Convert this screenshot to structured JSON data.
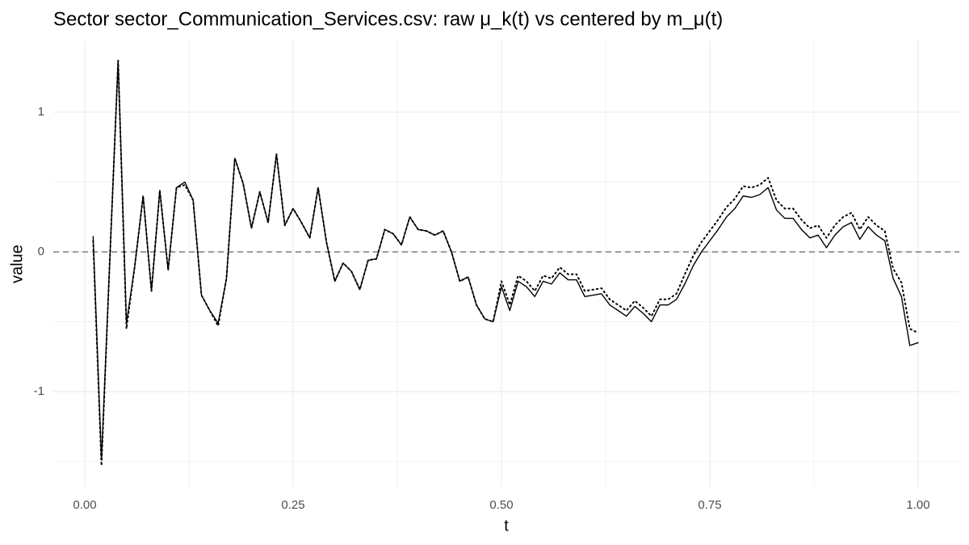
{
  "chart_data": {
    "type": "line",
    "title": "Sector sector_Communication_Services.csv: raw μ_k(t) vs centered by m_μ(t)",
    "xlabel": "t",
    "ylabel": "value",
    "x": [
      0.01,
      0.02,
      0.03,
      0.04,
      0.05,
      0.06,
      0.07,
      0.08,
      0.09,
      0.1,
      0.11,
      0.12,
      0.13,
      0.14,
      0.15,
      0.16,
      0.17,
      0.18,
      0.19,
      0.2,
      0.21,
      0.22,
      0.23,
      0.24,
      0.25,
      0.26,
      0.27,
      0.28,
      0.29,
      0.3,
      0.31,
      0.32,
      0.33,
      0.34,
      0.35,
      0.36,
      0.37,
      0.38,
      0.39,
      0.4,
      0.41,
      0.42,
      0.43,
      0.44,
      0.45,
      0.46,
      0.47,
      0.48,
      0.49,
      0.5,
      0.51,
      0.52,
      0.53,
      0.54,
      0.55,
      0.56,
      0.57,
      0.58,
      0.59,
      0.6,
      0.61,
      0.62,
      0.63,
      0.64,
      0.65,
      0.66,
      0.67,
      0.68,
      0.69,
      0.7,
      0.71,
      0.72,
      0.73,
      0.74,
      0.75,
      0.76,
      0.77,
      0.78,
      0.79,
      0.8,
      0.81,
      0.82,
      0.83,
      0.84,
      0.85,
      0.86,
      0.87,
      0.88,
      0.89,
      0.9,
      0.91,
      0.92,
      0.93,
      0.94,
      0.95,
      0.96,
      0.97,
      0.98,
      0.99,
      1.0
    ],
    "series": [
      {
        "color": "#000000",
        "line_style": "solid",
        "values": [
          0.11,
          -1.49,
          -0.06,
          1.37,
          -0.51,
          -0.1,
          0.4,
          -0.28,
          0.44,
          -0.13,
          0.46,
          0.5,
          0.37,
          -0.31,
          -0.42,
          -0.51,
          -0.19,
          0.67,
          0.49,
          0.17,
          0.43,
          0.21,
          0.7,
          0.19,
          0.31,
          0.21,
          0.1,
          0.46,
          0.07,
          -0.21,
          -0.08,
          -0.14,
          -0.27,
          -0.06,
          -0.05,
          0.16,
          0.13,
          0.05,
          0.25,
          0.16,
          0.15,
          0.12,
          0.15,
          0.0,
          -0.21,
          -0.18,
          -0.38,
          -0.48,
          -0.5,
          -0.25,
          -0.42,
          -0.21,
          -0.25,
          -0.32,
          -0.21,
          -0.23,
          -0.15,
          -0.2,
          -0.2,
          -0.32,
          -0.31,
          -0.3,
          -0.38,
          -0.42,
          -0.46,
          -0.39,
          -0.44,
          -0.5,
          -0.38,
          -0.38,
          -0.34,
          -0.23,
          -0.1,
          0.0,
          0.08,
          0.16,
          0.25,
          0.31,
          0.4,
          0.39,
          0.41,
          0.46,
          0.3,
          0.24,
          0.24,
          0.16,
          0.1,
          0.12,
          0.03,
          0.12,
          0.18,
          0.21,
          0.09,
          0.18,
          0.12,
          0.08,
          -0.19,
          -0.32,
          -0.67,
          -0.65
        ]
      },
      {
        "color": "#000000",
        "line_style": "dotted",
        "values": [
          0.08,
          -1.53,
          -0.06,
          1.37,
          -0.55,
          -0.1,
          0.4,
          -0.28,
          0.44,
          -0.13,
          0.46,
          0.48,
          0.37,
          -0.31,
          -0.42,
          -0.53,
          -0.19,
          0.67,
          0.49,
          0.17,
          0.43,
          0.21,
          0.7,
          0.19,
          0.31,
          0.21,
          0.1,
          0.46,
          0.07,
          -0.21,
          -0.08,
          -0.14,
          -0.27,
          -0.06,
          -0.05,
          0.16,
          0.13,
          0.05,
          0.25,
          0.16,
          0.15,
          0.12,
          0.15,
          0.0,
          -0.21,
          -0.18,
          -0.38,
          -0.48,
          -0.5,
          -0.21,
          -0.38,
          -0.17,
          -0.21,
          -0.28,
          -0.17,
          -0.19,
          -0.11,
          -0.16,
          -0.16,
          -0.28,
          -0.27,
          -0.26,
          -0.34,
          -0.38,
          -0.42,
          -0.35,
          -0.4,
          -0.46,
          -0.34,
          -0.34,
          -0.3,
          -0.16,
          -0.03,
          0.07,
          0.15,
          0.23,
          0.32,
          0.38,
          0.47,
          0.46,
          0.48,
          0.53,
          0.37,
          0.31,
          0.31,
          0.23,
          0.17,
          0.19,
          0.1,
          0.19,
          0.25,
          0.28,
          0.16,
          0.25,
          0.19,
          0.15,
          -0.12,
          -0.22,
          -0.55,
          -0.58
        ]
      }
    ],
    "xlim": [
      -0.0378,
      1.0494
    ],
    "ylim": [
      -1.682,
      1.514
    ],
    "xticks": [
      {
        "value": 0,
        "label": "0.00"
      },
      {
        "value": 0.25,
        "label": "0.25"
      },
      {
        "value": 0.5,
        "label": "0.50"
      },
      {
        "value": 0.75,
        "label": "0.75"
      },
      {
        "value": 1,
        "label": "1.00"
      }
    ],
    "yticks": [
      -1,
      0,
      1
    ],
    "x_minor_grid": [
      0.125,
      0.375,
      0.625,
      0.875
    ],
    "y_minor_grid": [
      -1.5,
      -0.5,
      0.5
    ],
    "hline": 0,
    "hline_color": "#666666",
    "grid": true
  }
}
